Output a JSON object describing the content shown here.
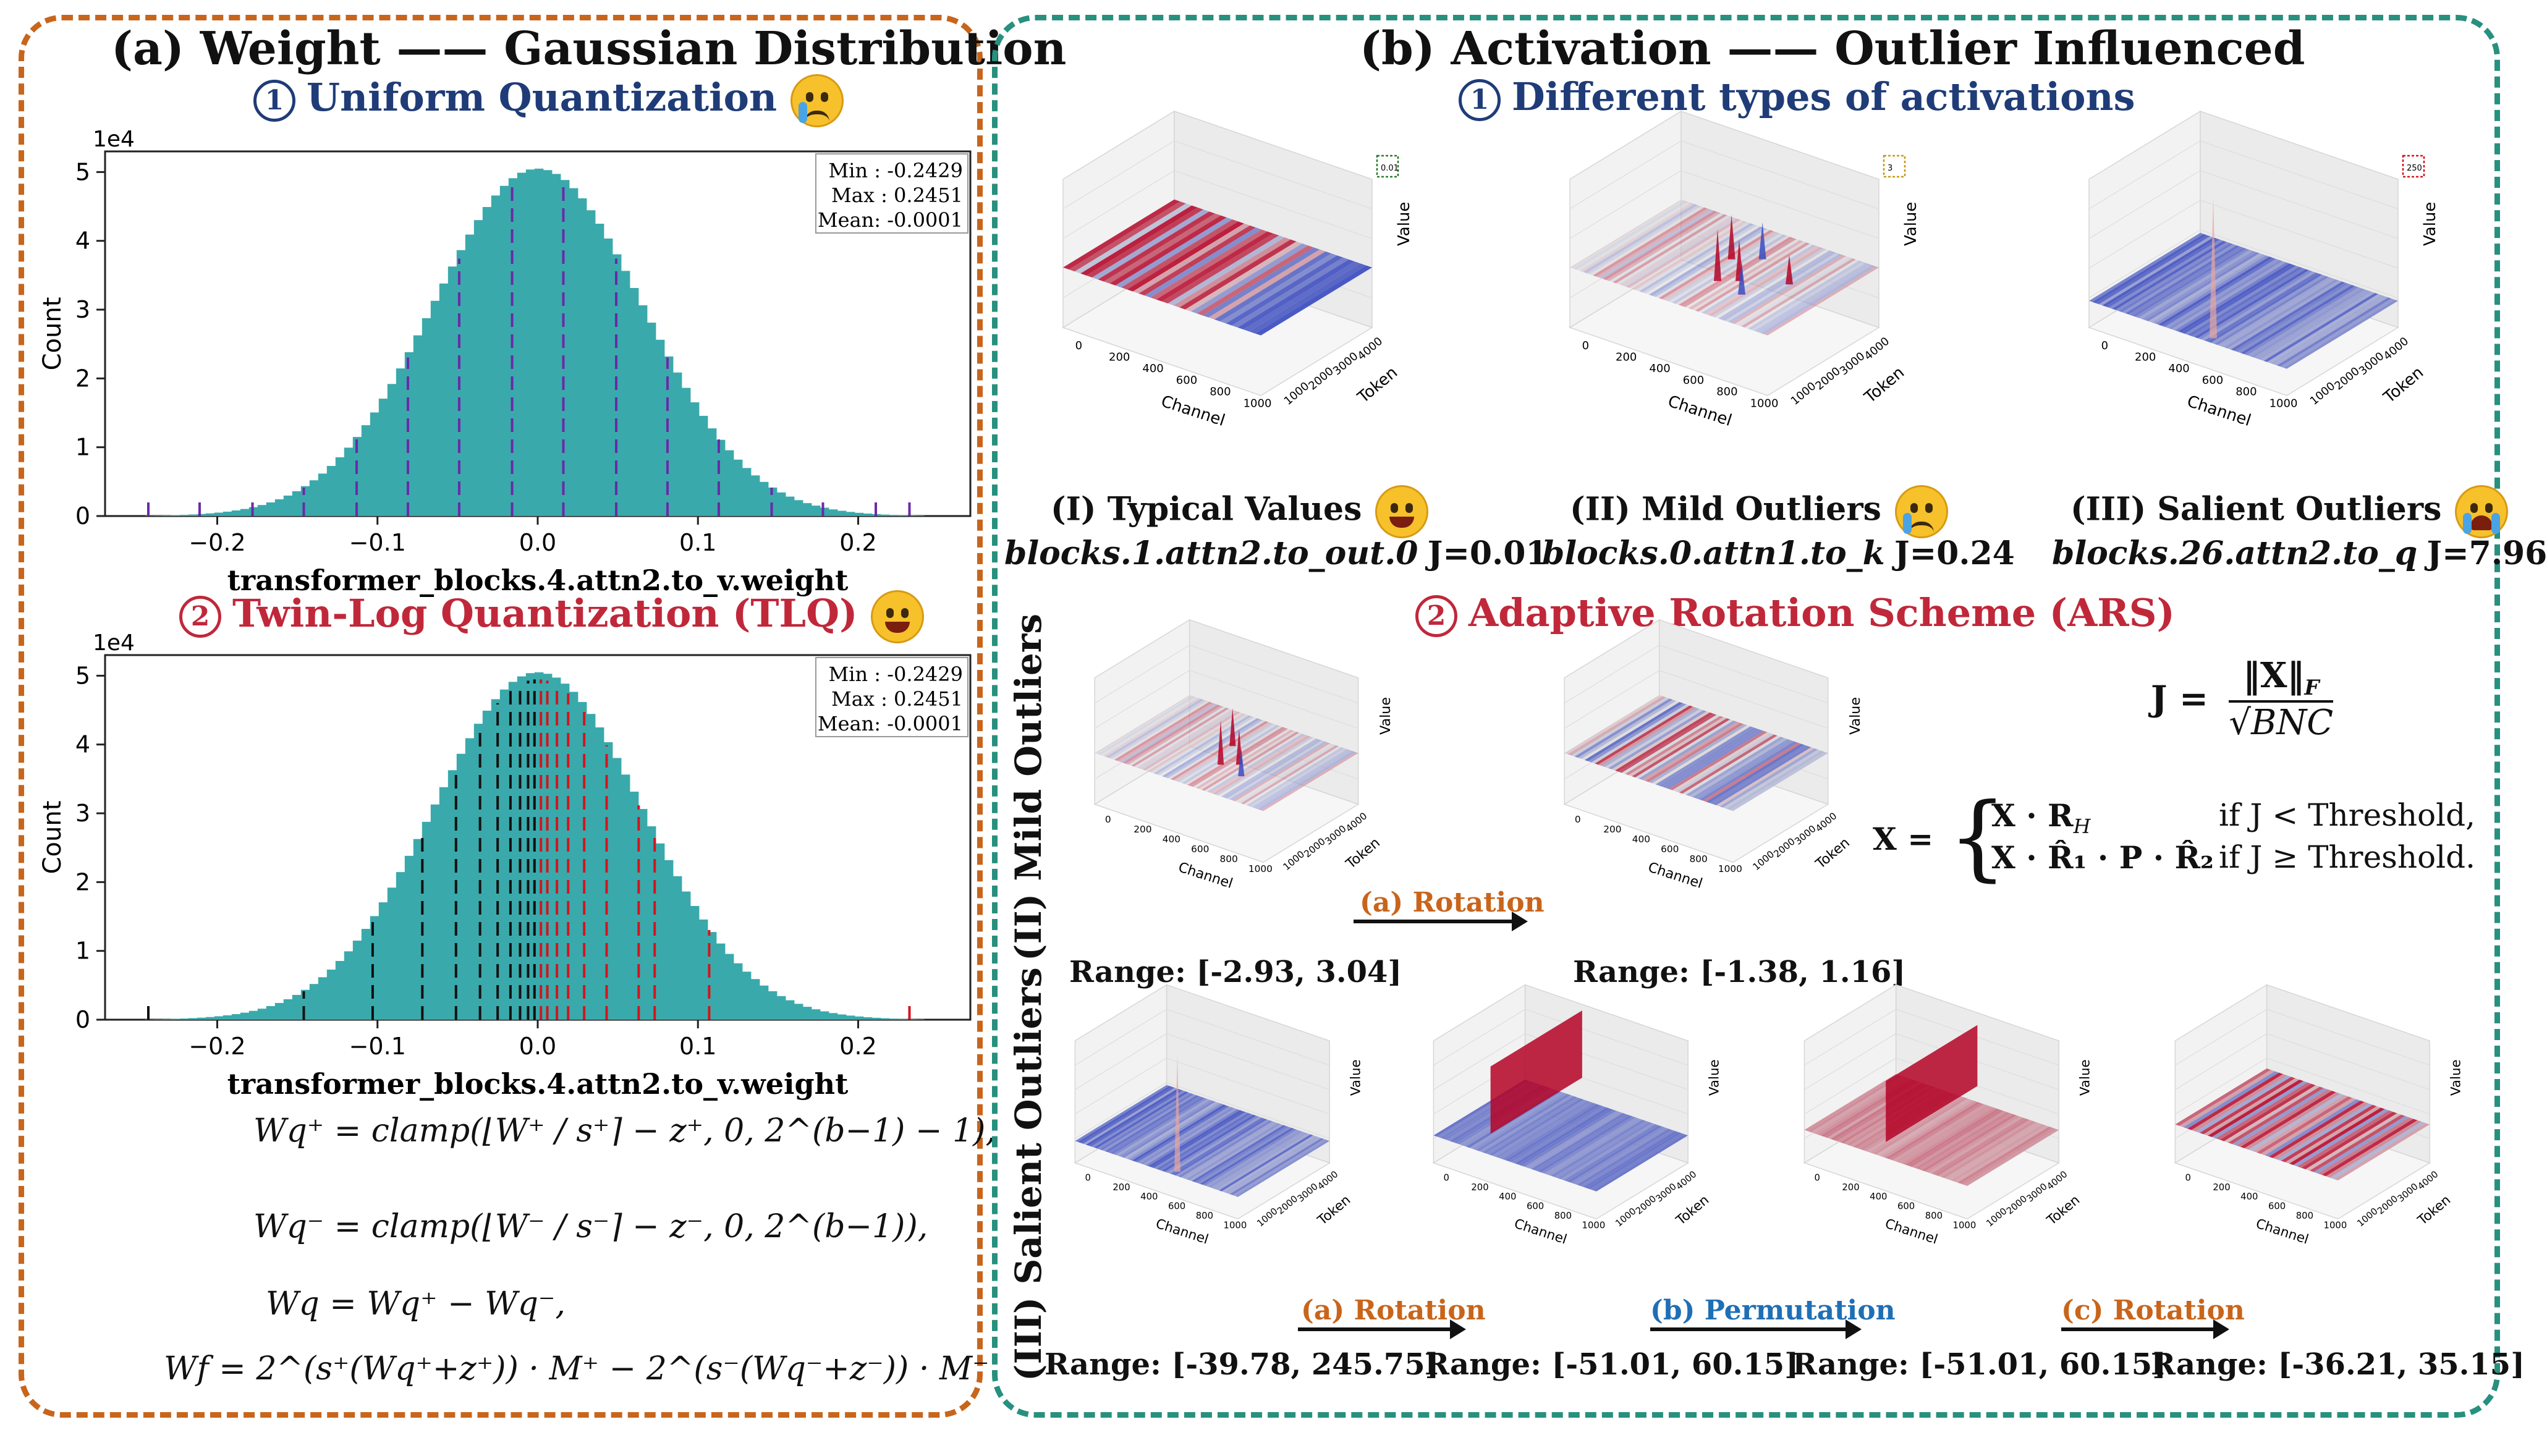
{
  "panel_a": {
    "title": "(a) Weight —— Gaussian Distribution",
    "sub1": {
      "num": "1",
      "text": "Uniform Quantization",
      "emoji": "crying-face"
    },
    "sub2": {
      "num": "2",
      "text": "Twin-Log Quantization (TLQ)",
      "emoji": "grinning-face"
    },
    "hist1": {
      "stats": [
        "Min : -0.2429",
        "Max : 0.2451",
        "Mean: -0.0001"
      ],
      "ylabel": "Count",
      "scale": "1e4",
      "xlabel": "transformer_blocks.4.attn2.to_v.weight",
      "xticks": [
        "−0.2",
        "−0.1",
        "0.0",
        "0.1",
        "0.2"
      ],
      "yticks": [
        "0",
        "1",
        "2",
        "3",
        "4",
        "5"
      ],
      "quant_levels": [
        -0.243,
        -0.211,
        -0.178,
        -0.146,
        -0.113,
        -0.081,
        -0.049,
        -0.016,
        0.016,
        0.049,
        0.081,
        0.113,
        0.146,
        0.178,
        0.211,
        0.232
      ]
    },
    "hist2": {
      "stats": [
        "Min : -0.2429",
        "Max : 0.2451",
        "Mean: -0.0001"
      ],
      "ylabel": "Count",
      "scale": "1e4",
      "xlabel": "transformer_blocks.4.attn2.to_v.weight",
      "xticks": [
        "−0.2",
        "−0.1",
        "0.0",
        "0.1",
        "0.2"
      ],
      "yticks": [
        "0",
        "1",
        "2",
        "3",
        "4",
        "5"
      ],
      "neg_levels": [
        -0.243,
        -0.146,
        -0.103,
        -0.072,
        -0.051,
        -0.036,
        -0.025,
        -0.017,
        -0.011,
        -0.006,
        -0.002
      ],
      "pos_levels": [
        0.002,
        0.006,
        0.012,
        0.019,
        0.029,
        0.043,
        0.063,
        0.073,
        0.107,
        0.232
      ]
    },
    "formulas": [
      "Wq⁺ = clamp(⌊W⁺ / s⁺⌉ − z⁺, 0, 2^(b−1) − 1),",
      "Wq⁻ = clamp(⌊W⁻ / s⁻⌉ − z⁻, 0, 2^(b−1)),",
      "Wq = Wq⁺ − Wq⁻,",
      "Wf = 2^(s⁺(Wq⁺+z⁺)) · M⁺ − 2^(s⁻(Wq⁻+z⁻)) · M⁻."
    ]
  },
  "panel_b": {
    "title": "(b) Activation —— Outlier Influenced",
    "sub1": {
      "num": "1",
      "text": "Different types of activations"
    },
    "sub2": {
      "num": "2",
      "text": "Adaptive Rotation Scheme (ARS)"
    },
    "axis": {
      "x": "Channel",
      "y": "Token",
      "z": "Value",
      "xticks": [
        "0",
        "200",
        "400",
        "600",
        "800",
        "1000"
      ],
      "yticks": [
        "1000",
        "2000",
        "3000",
        "4000"
      ]
    },
    "types": [
      {
        "label": "(I) Typical Values",
        "emoji": "grinning-face",
        "layer": "blocks.1.attn2.to_out.0",
        "j": "J=0.01",
        "zmax": "0.01"
      },
      {
        "label": "(II) Mild Outliers",
        "emoji": "crying-face",
        "layer": "blocks.0.attn1.to_k",
        "j": "J=0.24",
        "zmax": "3"
      },
      {
        "label": "(III) Salient Outliers",
        "emoji": "loudly-crying-face",
        "layer": "blocks.26.attn2.to_q",
        "j": "J=7.96",
        "zmax": "250"
      }
    ],
    "j_formula": {
      "lhs": "J =",
      "num": "‖X‖",
      "num_sub": "F",
      "den": "√BNC"
    },
    "x_formula": {
      "lhs": "X =",
      "case1": {
        "expr": "X · R",
        "expr_sub": "H",
        "cond": "if J < Threshold,"
      },
      "case2": {
        "expr": "X · R̂₁ · P · R̂₂",
        "cond": "if J ≥ Threshold."
      }
    },
    "mild_row": {
      "side_label": "(II) Mild Outliers",
      "arrow": "(a) Rotation",
      "ranges": [
        "Range: [-2.93, 3.04]",
        "Range: [-1.38, 1.16]"
      ]
    },
    "salient_row": {
      "side_label": "(III) Salient Outliers",
      "arrows": [
        "(a) Rotation",
        "(b) Permutation",
        "(c) Rotation"
      ],
      "ranges": [
        "Range: [-39.78, 245.75]",
        "Range: [-51.01, 60.15]",
        "Range: [-51.01, 60.15]",
        "Range: [-36.21, 35.15]"
      ]
    }
  },
  "colors": {
    "orange": "#c8651b",
    "teal": "#27907e",
    "hist": "#3aa9ab",
    "navy": "#1f3c78",
    "red": "#c0283a",
    "blue": "#1f6fb5"
  }
}
